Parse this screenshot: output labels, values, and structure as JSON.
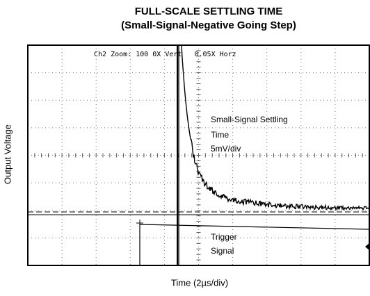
{
  "title": "FULL-SCALE SETTLING TIME",
  "subtitle": "(Small-Signal-Negative Going Step)",
  "y_axis_label": "Output Voltage",
  "x_axis_label": "Time (2µs/div)",
  "scope_header": "Ch2 Zoom: 100 0X Vert   0.05X Horz",
  "annotations": [
    {
      "lines": [
        "Small-Signal Settling",
        "Time",
        "5mV/div"
      ]
    },
    {
      "lines": [
        "Trigger",
        "Signal"
      ]
    }
  ]
}
